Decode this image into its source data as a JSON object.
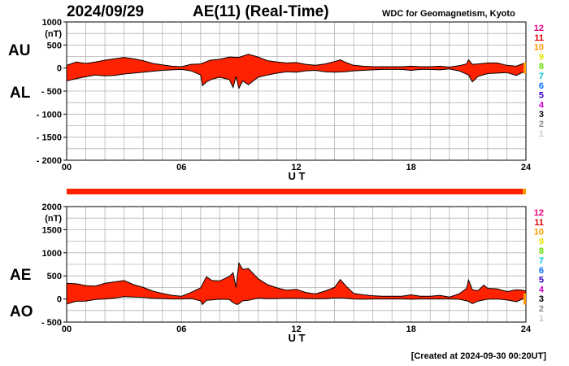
{
  "header": {
    "date": "2024/09/29",
    "title": "AE(11) (Real-Time)",
    "source": "WDC for Geomagnetism, Kyoto"
  },
  "footer": {
    "created": "[Created at 2024-09-30 00:20UT]"
  },
  "colors": {
    "fill": "#ff2200",
    "outline": "#000000",
    "grid": "#b4b4b4",
    "frame": "#000000",
    "station_bar": "#ff2200",
    "station_bar_end": "#ff9900"
  },
  "legend": {
    "items": [
      {
        "label": "12",
        "color": "#e8007a"
      },
      {
        "label": "11",
        "color": "#e00000"
      },
      {
        "label": "10",
        "color": "#ff9900"
      },
      {
        "label": "9",
        "color": "#e6e600"
      },
      {
        "label": "8",
        "color": "#66dd00"
      },
      {
        "label": "7",
        "color": "#00c8dc"
      },
      {
        "label": "6",
        "color": "#0070ff"
      },
      {
        "label": "5",
        "color": "#3300cc"
      },
      {
        "label": "4",
        "color": "#cc00cc"
      },
      {
        "label": "3",
        "color": "#000000"
      },
      {
        "label": "2",
        "color": "#888888"
      },
      {
        "label": "1",
        "color": "#cccccc"
      }
    ]
  },
  "chart_data": [
    {
      "type": "area",
      "id": "au-al",
      "upper_label": "AU",
      "lower_label": "AL",
      "unit": "(nT)",
      "xlabel": "U T",
      "xticks": [
        "00",
        "06",
        "12",
        "18",
        "24"
      ],
      "xlim": [
        0,
        24
      ],
      "ylim": [
        -2000,
        1000
      ],
      "yticks": [
        {
          "v": 1000,
          "label": "1000"
        },
        {
          "v": 500,
          "label": "500"
        },
        {
          "v": 0,
          "label": "0"
        },
        {
          "v": -500,
          "label": "- 500"
        },
        {
          "v": -1000,
          "label": "- 1000"
        },
        {
          "v": -1500,
          "label": "- 1500"
        },
        {
          "v": -2000,
          "label": "- 2000"
        }
      ],
      "grid": true,
      "upper_series": {
        "name": "AU",
        "points": [
          [
            0,
            60
          ],
          [
            0.5,
            130
          ],
          [
            1.0,
            100
          ],
          [
            1.5,
            130
          ],
          [
            2.0,
            170
          ],
          [
            2.5,
            200
          ],
          [
            3.0,
            230
          ],
          [
            3.5,
            200
          ],
          [
            4.0,
            160
          ],
          [
            4.5,
            100
          ],
          [
            5.0,
            70
          ],
          [
            5.5,
            40
          ],
          [
            6.0,
            30
          ],
          [
            6.5,
            80
          ],
          [
            7.0,
            90
          ],
          [
            7.5,
            170
          ],
          [
            8.0,
            190
          ],
          [
            8.5,
            240
          ],
          [
            9.0,
            230
          ],
          [
            9.5,
            300
          ],
          [
            10.0,
            240
          ],
          [
            10.5,
            160
          ],
          [
            11.0,
            130
          ],
          [
            11.5,
            110
          ],
          [
            12.0,
            120
          ],
          [
            12.5,
            80
          ],
          [
            13.0,
            60
          ],
          [
            13.5,
            90
          ],
          [
            14.0,
            140
          ],
          [
            14.3,
            180
          ],
          [
            14.6,
            120
          ],
          [
            15.0,
            60
          ],
          [
            15.5,
            40
          ],
          [
            16.0,
            30
          ],
          [
            16.5,
            30
          ],
          [
            17.0,
            30
          ],
          [
            17.5,
            30
          ],
          [
            18.0,
            40
          ],
          [
            18.5,
            30
          ],
          [
            19.0,
            30
          ],
          [
            19.5,
            40
          ],
          [
            20.0,
            20
          ],
          [
            20.5,
            50
          ],
          [
            20.9,
            90
          ],
          [
            21.0,
            180
          ],
          [
            21.2,
            80
          ],
          [
            21.5,
            90
          ],
          [
            22.0,
            110
          ],
          [
            22.5,
            110
          ],
          [
            23.0,
            60
          ],
          [
            23.5,
            40
          ],
          [
            23.8,
            90
          ],
          [
            24.0,
            110
          ]
        ]
      },
      "lower_series": {
        "name": "AL",
        "points": [
          [
            0,
            -280
          ],
          [
            0.5,
            -230
          ],
          [
            1.0,
            -190
          ],
          [
            1.5,
            -150
          ],
          [
            2.0,
            -170
          ],
          [
            2.5,
            -160
          ],
          [
            3.0,
            -130
          ],
          [
            3.5,
            -110
          ],
          [
            4.0,
            -90
          ],
          [
            4.5,
            -70
          ],
          [
            5.0,
            -50
          ],
          [
            5.5,
            -40
          ],
          [
            6.0,
            -30
          ],
          [
            6.5,
            -60
          ],
          [
            7.0,
            -150
          ],
          [
            7.1,
            -380
          ],
          [
            7.3,
            -300
          ],
          [
            7.6,
            -240
          ],
          [
            8.0,
            -200
          ],
          [
            8.5,
            -250
          ],
          [
            8.7,
            -420
          ],
          [
            8.85,
            -180
          ],
          [
            9.0,
            -440
          ],
          [
            9.2,
            -280
          ],
          [
            9.5,
            -360
          ],
          [
            10.0,
            -200
          ],
          [
            10.5,
            -150
          ],
          [
            11.0,
            -110
          ],
          [
            11.5,
            -80
          ],
          [
            12.0,
            -90
          ],
          [
            12.5,
            -60
          ],
          [
            13.0,
            -50
          ],
          [
            13.5,
            -80
          ],
          [
            14.0,
            -90
          ],
          [
            14.5,
            -80
          ],
          [
            15.0,
            -60
          ],
          [
            15.5,
            -50
          ],
          [
            16.0,
            -40
          ],
          [
            16.5,
            -30
          ],
          [
            17.0,
            -30
          ],
          [
            17.5,
            -30
          ],
          [
            18.0,
            -50
          ],
          [
            18.5,
            -30
          ],
          [
            19.0,
            -30
          ],
          [
            19.5,
            -40
          ],
          [
            20.0,
            -20
          ],
          [
            20.5,
            -60
          ],
          [
            21.0,
            -150
          ],
          [
            21.2,
            -300
          ],
          [
            21.5,
            -180
          ],
          [
            22.0,
            -120
          ],
          [
            22.5,
            -110
          ],
          [
            23.0,
            -100
          ],
          [
            23.5,
            -160
          ],
          [
            23.8,
            -100
          ],
          [
            24.0,
            -60
          ]
        ]
      }
    },
    {
      "type": "area",
      "id": "ae-ao",
      "upper_label": "AE",
      "lower_label": "AO",
      "unit": "(nT)",
      "xlabel": "U T",
      "xticks": [
        "00",
        "06",
        "12",
        "18",
        "24"
      ],
      "xlim": [
        0,
        24
      ],
      "ylim": [
        -500,
        2000
      ],
      "yticks": [
        {
          "v": 2000,
          "label": "2000"
        },
        {
          "v": 1500,
          "label": "1500"
        },
        {
          "v": 1000,
          "label": "1000"
        },
        {
          "v": 500,
          "label": "500"
        },
        {
          "v": 0,
          "label": "0"
        },
        {
          "v": -500,
          "label": "- 500"
        }
      ],
      "grid": true,
      "upper_series": {
        "name": "AE",
        "points": [
          [
            0,
            340
          ],
          [
            0.5,
            330
          ],
          [
            1.0,
            290
          ],
          [
            1.5,
            280
          ],
          [
            2.0,
            340
          ],
          [
            2.5,
            370
          ],
          [
            3.0,
            400
          ],
          [
            3.5,
            310
          ],
          [
            4.0,
            250
          ],
          [
            4.5,
            170
          ],
          [
            5.0,
            120
          ],
          [
            5.5,
            80
          ],
          [
            6.0,
            60
          ],
          [
            6.5,
            140
          ],
          [
            7.0,
            240
          ],
          [
            7.3,
            480
          ],
          [
            7.6,
            400
          ],
          [
            8.0,
            390
          ],
          [
            8.5,
            490
          ],
          [
            8.7,
            570
          ],
          [
            8.85,
            250
          ],
          [
            9.0,
            780
          ],
          [
            9.2,
            640
          ],
          [
            9.5,
            660
          ],
          [
            10.0,
            440
          ],
          [
            10.5,
            310
          ],
          [
            11.0,
            240
          ],
          [
            11.5,
            190
          ],
          [
            12.0,
            210
          ],
          [
            12.5,
            140
          ],
          [
            13.0,
            110
          ],
          [
            13.5,
            170
          ],
          [
            14.0,
            250
          ],
          [
            14.3,
            420
          ],
          [
            14.6,
            280
          ],
          [
            15.0,
            120
          ],
          [
            15.5,
            90
          ],
          [
            16.0,
            70
          ],
          [
            16.5,
            60
          ],
          [
            17.0,
            60
          ],
          [
            17.5,
            60
          ],
          [
            18.0,
            90
          ],
          [
            18.5,
            60
          ],
          [
            19.0,
            60
          ],
          [
            19.5,
            80
          ],
          [
            20.0,
            40
          ],
          [
            20.5,
            110
          ],
          [
            20.9,
            230
          ],
          [
            21.0,
            410
          ],
          [
            21.2,
            200
          ],
          [
            21.5,
            180
          ],
          [
            21.8,
            300
          ],
          [
            22.0,
            230
          ],
          [
            22.5,
            220
          ],
          [
            23.0,
            160
          ],
          [
            23.5,
            200
          ],
          [
            23.8,
            190
          ],
          [
            24.0,
            170
          ]
        ]
      },
      "lower_series": {
        "name": "AO",
        "points": [
          [
            0,
            -110
          ],
          [
            0.5,
            -50
          ],
          [
            1.0,
            -45
          ],
          [
            1.5,
            -10
          ],
          [
            2.0,
            0
          ],
          [
            2.5,
            20
          ],
          [
            3.0,
            50
          ],
          [
            3.5,
            40
          ],
          [
            4.0,
            35
          ],
          [
            4.5,
            15
          ],
          [
            5.0,
            10
          ],
          [
            5.5,
            0
          ],
          [
            6.0,
            0
          ],
          [
            6.5,
            10
          ],
          [
            7.0,
            -40
          ],
          [
            7.1,
            -120
          ],
          [
            7.3,
            -30
          ],
          [
            7.6,
            -20
          ],
          [
            8.0,
            -5
          ],
          [
            8.5,
            -10
          ],
          [
            8.7,
            -80
          ],
          [
            8.9,
            -120
          ],
          [
            9.0,
            -100
          ],
          [
            9.2,
            -40
          ],
          [
            9.5,
            -30
          ],
          [
            10.0,
            20
          ],
          [
            10.5,
            5
          ],
          [
            11.0,
            10
          ],
          [
            11.5,
            15
          ],
          [
            12.0,
            15
          ],
          [
            12.5,
            10
          ],
          [
            13.0,
            5
          ],
          [
            13.5,
            5
          ],
          [
            14.0,
            25
          ],
          [
            14.5,
            20
          ],
          [
            15.0,
            0
          ],
          [
            15.5,
            -5
          ],
          [
            16.0,
            0
          ],
          [
            16.5,
            0
          ],
          [
            17.0,
            0
          ],
          [
            17.5,
            0
          ],
          [
            18.0,
            -5
          ],
          [
            18.5,
            0
          ],
          [
            19.0,
            0
          ],
          [
            19.5,
            0
          ],
          [
            20.0,
            0
          ],
          [
            20.5,
            -5
          ],
          [
            21.0,
            -50
          ],
          [
            21.2,
            -100
          ],
          [
            21.5,
            -45
          ],
          [
            22.0,
            -5
          ],
          [
            22.5,
            0
          ],
          [
            23.0,
            -20
          ],
          [
            23.5,
            -60
          ],
          [
            23.8,
            -5
          ],
          [
            24.0,
            25
          ]
        ]
      }
    }
  ]
}
